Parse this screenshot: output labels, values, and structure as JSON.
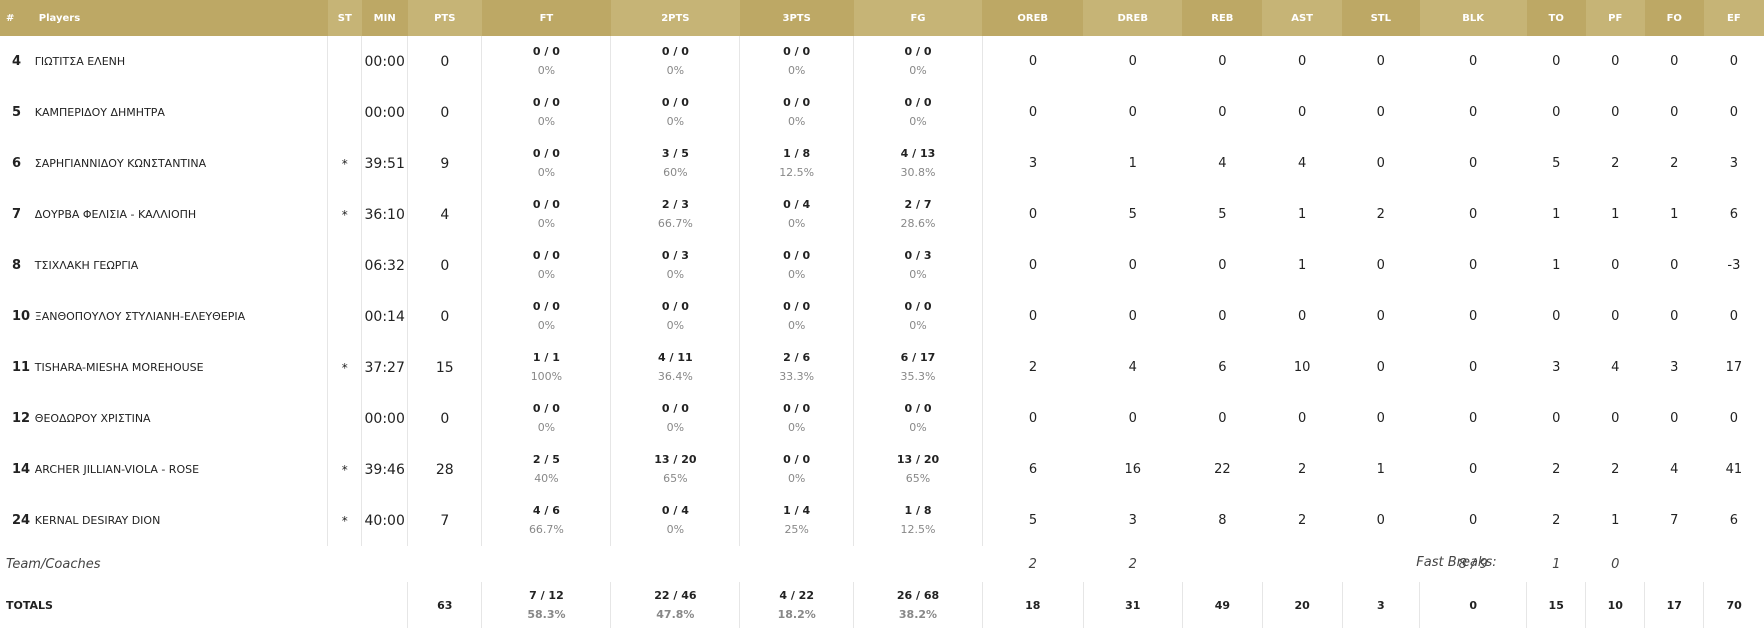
{
  "headers": [
    "#",
    "Players",
    "ST",
    "MIN",
    "PTS",
    "FT",
    "2PTS",
    "3PTS",
    "FG",
    "OREB",
    "DREB",
    "REB",
    "AST",
    "STL",
    "BLK",
    "TO",
    "PF",
    "FO",
    "EF"
  ],
  "players": [
    {
      "num": "4",
      "name": "ΓΙΩΤΙΤΣΑ ΕΛΕΝΗ",
      "st": "",
      "min": "00:00",
      "pts": "0",
      "ft_m": "0 / 0",
      "ft_p": "0%",
      "p2_m": "0 / 0",
      "p2_p": "0%",
      "p3_m": "0 / 0",
      "p3_p": "0%",
      "fg_m": "0 / 0",
      "fg_p": "0%",
      "oreb": "0",
      "dreb": "0",
      "reb": "0",
      "ast": "0",
      "stl": "0",
      "blk": "0",
      "to": "0",
      "pf": "0",
      "fo": "0",
      "ef": "0"
    },
    {
      "num": "5",
      "name": "ΚΑΜΠΕΡΙΔΟΥ ΔΗΜΗΤΡΑ",
      "st": "",
      "min": "00:00",
      "pts": "0",
      "ft_m": "0 / 0",
      "ft_p": "0%",
      "p2_m": "0 / 0",
      "p2_p": "0%",
      "p3_m": "0 / 0",
      "p3_p": "0%",
      "fg_m": "0 / 0",
      "fg_p": "0%",
      "oreb": "0",
      "dreb": "0",
      "reb": "0",
      "ast": "0",
      "stl": "0",
      "blk": "0",
      "to": "0",
      "pf": "0",
      "fo": "0",
      "ef": "0"
    },
    {
      "num": "6",
      "name": "ΣΑΡΗΓΙΑΝΝΙΔΟΥ ΚΩΝΣΤΑΝΤΙΝΑ",
      "st": "*",
      "min": "39:51",
      "pts": "9",
      "ft_m": "0 / 0",
      "ft_p": "0%",
      "p2_m": "3 / 5",
      "p2_p": "60%",
      "p3_m": "1 / 8",
      "p3_p": "12.5%",
      "fg_m": "4 / 13",
      "fg_p": "30.8%",
      "oreb": "3",
      "dreb": "1",
      "reb": "4",
      "ast": "4",
      "stl": "0",
      "blk": "0",
      "to": "5",
      "pf": "2",
      "fo": "2",
      "ef": "3"
    },
    {
      "num": "7",
      "name": "ΔΟΥΡΒΑ ΦΕΛΙΣΙΑ - ΚΑΛΛΙΟΠΗ",
      "st": "*",
      "min": "36:10",
      "pts": "4",
      "ft_m": "0 / 0",
      "ft_p": "0%",
      "p2_m": "2 / 3",
      "p2_p": "66.7%",
      "p3_m": "0 / 4",
      "p3_p": "0%",
      "fg_m": "2 / 7",
      "fg_p": "28.6%",
      "oreb": "0",
      "dreb": "5",
      "reb": "5",
      "ast": "1",
      "stl": "2",
      "blk": "0",
      "to": "1",
      "pf": "1",
      "fo": "1",
      "ef": "6"
    },
    {
      "num": "8",
      "name": "ΤΣΙΧΛΑΚΗ ΓΕΩΡΓΙΑ",
      "st": "",
      "min": "06:32",
      "pts": "0",
      "ft_m": "0 / 0",
      "ft_p": "0%",
      "p2_m": "0 / 3",
      "p2_p": "0%",
      "p3_m": "0 / 0",
      "p3_p": "0%",
      "fg_m": "0 / 3",
      "fg_p": "0%",
      "oreb": "0",
      "dreb": "0",
      "reb": "0",
      "ast": "1",
      "stl": "0",
      "blk": "0",
      "to": "1",
      "pf": "0",
      "fo": "0",
      "ef": "-3"
    },
    {
      "num": "10",
      "name": "ΞΑΝΘΟΠΟΥΛΟΥ ΣΤΥΛΙΑΝΗ-ΕΛΕΥΘΕΡΙΑ",
      "st": "",
      "min": "00:14",
      "pts": "0",
      "ft_m": "0 / 0",
      "ft_p": "0%",
      "p2_m": "0 / 0",
      "p2_p": "0%",
      "p3_m": "0 / 0",
      "p3_p": "0%",
      "fg_m": "0 / 0",
      "fg_p": "0%",
      "oreb": "0",
      "dreb": "0",
      "reb": "0",
      "ast": "0",
      "stl": "0",
      "blk": "0",
      "to": "0",
      "pf": "0",
      "fo": "0",
      "ef": "0"
    },
    {
      "num": "11",
      "name": "TISHARA-MIESHA MOREHOUSE",
      "st": "*",
      "min": "37:27",
      "pts": "15",
      "ft_m": "1 / 1",
      "ft_p": "100%",
      "p2_m": "4 / 11",
      "p2_p": "36.4%",
      "p3_m": "2 / 6",
      "p3_p": "33.3%",
      "fg_m": "6 / 17",
      "fg_p": "35.3%",
      "oreb": "2",
      "dreb": "4",
      "reb": "6",
      "ast": "10",
      "stl": "0",
      "blk": "0",
      "to": "3",
      "pf": "4",
      "fo": "3",
      "ef": "17"
    },
    {
      "num": "12",
      "name": "ΘΕΟΔΩΡΟΥ ΧΡΙΣΤΙΝΑ",
      "st": "",
      "min": "00:00",
      "pts": "0",
      "ft_m": "0 / 0",
      "ft_p": "0%",
      "p2_m": "0 / 0",
      "p2_p": "0%",
      "p3_m": "0 / 0",
      "p3_p": "0%",
      "fg_m": "0 / 0",
      "fg_p": "0%",
      "oreb": "0",
      "dreb": "0",
      "reb": "0",
      "ast": "0",
      "stl": "0",
      "blk": "0",
      "to": "0",
      "pf": "0",
      "fo": "0",
      "ef": "0"
    },
    {
      "num": "14",
      "name": "ARCHER JILLIAN-VIOLA - ROSE",
      "st": "*",
      "min": "39:46",
      "pts": "28",
      "ft_m": "2 / 5",
      "ft_p": "40%",
      "p2_m": "13 / 20",
      "p2_p": "65%",
      "p3_m": "0 / 0",
      "p3_p": "0%",
      "fg_m": "13 / 20",
      "fg_p": "65%",
      "oreb": "6",
      "dreb": "16",
      "reb": "22",
      "ast": "2",
      "stl": "1",
      "blk": "0",
      "to": "2",
      "pf": "2",
      "fo": "4",
      "ef": "41"
    },
    {
      "num": "24",
      "name": "KERNAL DESIRAY DION",
      "st": "*",
      "min": "40:00",
      "pts": "7",
      "ft_m": "4 / 6",
      "ft_p": "66.7%",
      "p2_m": "0 / 4",
      "p2_p": "0%",
      "p3_m": "1 / 4",
      "p3_p": "25%",
      "fg_m": "1 / 8",
      "fg_p": "12.5%",
      "oreb": "5",
      "dreb": "3",
      "reb": "8",
      "ast": "2",
      "stl": "0",
      "blk": "0",
      "to": "2",
      "pf": "1",
      "fo": "7",
      "ef": "6"
    }
  ],
  "team": {
    "label": "Team/Coaches",
    "oreb": "2",
    "dreb": "2",
    "fast_breaks_label": "Fast Breaks:",
    "fast_breaks": "8 / 9",
    "to": "1",
    "pf": "0"
  },
  "totals": {
    "label": "TOTALS",
    "pts": "63",
    "ft_m": "7 / 12",
    "ft_p": "58.3%",
    "p2_m": "22 / 46",
    "p2_p": "47.8%",
    "p3_m": "4 / 22",
    "p3_p": "18.2%",
    "fg_m": "26 / 68",
    "fg_p": "38.2%",
    "oreb": "18",
    "dreb": "31",
    "reb": "49",
    "ast": "20",
    "stl": "3",
    "blk": "0",
    "to": "15",
    "pf": "10",
    "fo": "17",
    "ef": "70"
  },
  "colors": {
    "header_dark": "#bda865",
    "header_light": "#c6b476",
    "header_text": "#ffffff",
    "divider": "#e6e6e6",
    "pct_text": "#888888"
  }
}
